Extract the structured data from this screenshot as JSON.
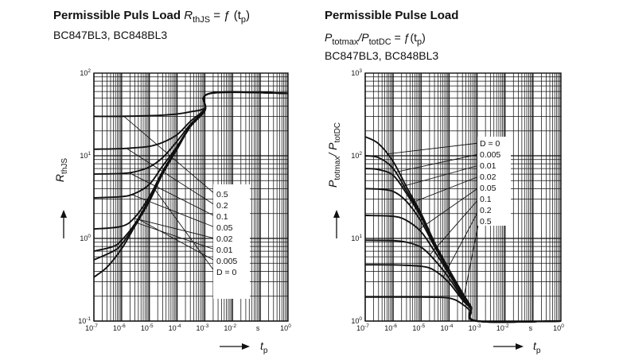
{
  "chart_data": [
    {
      "type": "line",
      "title": "Permissible Puls Load",
      "title_formula": "R",
      "title_formula_sub": "thJS",
      "title_formula_rest": " = ƒ (t",
      "title_formula_rest_sub": "p",
      "title_formula_close": ")",
      "subtitle": "BC847BL3, BC848BL3",
      "ylabel": "R",
      "ylabel_sub": "thJS",
      "xlabel": "t",
      "xlabel_sub": "p",
      "x_unit_label": "s",
      "x_scale": "log",
      "y_scale": "log",
      "xlim": [
        1e-07,
        1
      ],
      "ylim": [
        0.1,
        100
      ],
      "x_ticks": [
        {
          "base": "10",
          "exp": "-7"
        },
        {
          "base": "10",
          "exp": "-6"
        },
        {
          "base": "10",
          "exp": "-5"
        },
        {
          "base": "10",
          "exp": "-4"
        },
        {
          "base": "10",
          "exp": "-3"
        },
        {
          "base": "10",
          "exp": "-2"
        },
        {
          "base": "s",
          "exp": ""
        },
        {
          "base": "10",
          "exp": "0"
        }
      ],
      "y_ticks": [
        {
          "base": "10",
          "exp": "-1"
        },
        {
          "base": "10",
          "exp": "0"
        },
        {
          "base": "10",
          "exp": "1"
        },
        {
          "base": "10",
          "exp": "2"
        }
      ],
      "grid": true,
      "legend_title": "",
      "series": [
        {
          "name": "0.5",
          "x": [
            1e-07,
            1e-06,
            1e-05,
            3e-05,
            0.0001,
            0.0003,
            0.001,
            0.0016,
            1
          ],
          "y": [
            30,
            30,
            30.5,
            31,
            32,
            34,
            38,
            57,
            57
          ]
        },
        {
          "name": "0.2",
          "x": [
            1e-07,
            1e-06,
            3e-06,
            1e-05,
            3e-05,
            0.0001,
            0.0003,
            0.001,
            0.0016,
            1
          ],
          "y": [
            12,
            12.2,
            12.5,
            13,
            14.5,
            18,
            26,
            37,
            57,
            57
          ]
        },
        {
          "name": "0.1",
          "x": [
            1e-07,
            1e-06,
            3e-06,
            1e-05,
            3e-05,
            0.0001,
            0.0003,
            0.001,
            0.0016,
            1
          ],
          "y": [
            6,
            6.1,
            6.4,
            7.3,
            9.5,
            15,
            24,
            36,
            57,
            57
          ]
        },
        {
          "name": "0.05",
          "x": [
            1e-07,
            1e-06,
            3e-06,
            1e-05,
            3e-05,
            0.0001,
            0.0003,
            0.001,
            0.0016,
            1
          ],
          "y": [
            3.1,
            3.2,
            3.5,
            4.5,
            7.5,
            13,
            23,
            35,
            57,
            57
          ]
        },
        {
          "name": "0.02",
          "x": [
            1e-07,
            1e-06,
            3e-06,
            1e-05,
            3e-05,
            0.0001,
            0.0003,
            0.001,
            0.0016,
            1
          ],
          "y": [
            1.3,
            1.4,
            1.8,
            3.2,
            6.5,
            12.5,
            22.5,
            35,
            57,
            57
          ]
        },
        {
          "name": "0.01",
          "x": [
            1e-07,
            5e-07,
            1e-06,
            3e-06,
            1e-05,
            3e-05,
            0.0001,
            0.0003,
            0.001,
            0.0016,
            1
          ],
          "y": [
            0.7,
            0.8,
            0.95,
            1.5,
            3,
            6.2,
            12.3,
            22.5,
            35,
            57,
            57
          ]
        },
        {
          "name": "0.005",
          "x": [
            1e-07,
            5e-07,
            1e-06,
            3e-06,
            1e-05,
            3e-05,
            0.0001,
            0.0003,
            0.001,
            0.0016,
            1
          ],
          "y": [
            0.55,
            0.7,
            0.85,
            1.45,
            2.9,
            6.1,
            12.2,
            22.5,
            35,
            57,
            57
          ]
        },
        {
          "name": "D = 0",
          "x": [
            1e-07,
            3e-07,
            1e-06,
            3e-06,
            1e-05,
            3e-05,
            0.0001,
            0.0003,
            0.001,
            0.0016,
            1
          ],
          "y": [
            0.34,
            0.45,
            0.75,
            1.4,
            2.8,
            6,
            12,
            22.5,
            35,
            57,
            57
          ]
        }
      ]
    },
    {
      "type": "line",
      "title": "Permissible Pulse Load",
      "title_formula": "P",
      "title_formula_sub": "totmax",
      "title_formula_mid": "/P",
      "title_formula_mid_sub": "totDC",
      "title_formula_rest": " = ƒ(t",
      "title_formula_rest_sub": "p",
      "title_formula_close": ")",
      "subtitle": "BC847BL3, BC848BL3",
      "ylabel": "P",
      "ylabel_sub": "totmax",
      "ylabel_mid": "/ P",
      "ylabel_mid_sub": "totDC",
      "xlabel": "t",
      "xlabel_sub": "p",
      "x_unit_label": "s",
      "x_scale": "log",
      "y_scale": "log",
      "xlim": [
        1e-07,
        1
      ],
      "ylim": [
        1,
        1000
      ],
      "x_ticks": [
        {
          "base": "10",
          "exp": "-7"
        },
        {
          "base": "10",
          "exp": "-6"
        },
        {
          "base": "10",
          "exp": "-5"
        },
        {
          "base": "10",
          "exp": "-4"
        },
        {
          "base": "10",
          "exp": "-3"
        },
        {
          "base": "10",
          "exp": "-2"
        },
        {
          "base": "s",
          "exp": ""
        },
        {
          "base": "10",
          "exp": "0"
        }
      ],
      "y_ticks": [
        {
          "base": "10",
          "exp": "0"
        },
        {
          "base": "10",
          "exp": "1"
        },
        {
          "base": "10",
          "exp": "2"
        },
        {
          "base": "10",
          "exp": "3"
        }
      ],
      "grid": true,
      "series": [
        {
          "name": "D = 0",
          "x": [
            1e-07,
            3e-07,
            1e-06,
            3e-06,
            1e-05,
            3e-05,
            0.0001,
            0.0003,
            0.0006,
            0.001,
            1
          ],
          "y": [
            170,
            140,
            85,
            42,
            20,
            9,
            4.2,
            2.2,
            1.5,
            1,
            1
          ]
        },
        {
          "name": "0.005",
          "x": [
            1e-07,
            3e-07,
            1e-06,
            3e-06,
            1e-05,
            3e-05,
            0.0001,
            0.0003,
            0.0006,
            0.001,
            1
          ],
          "y": [
            100,
            95,
            70,
            38,
            19,
            8.7,
            4.1,
            2.15,
            1.5,
            1,
            1
          ]
        },
        {
          "name": "0.01",
          "x": [
            1e-07,
            3e-07,
            1e-06,
            3e-06,
            1e-05,
            3e-05,
            0.0001,
            0.0003,
            0.0006,
            0.001,
            1
          ],
          "y": [
            70,
            68,
            58,
            35,
            18,
            8.5,
            4.05,
            2.1,
            1.5,
            1,
            1
          ]
        },
        {
          "name": "0.02",
          "x": [
            1e-07,
            3e-07,
            1e-06,
            3e-06,
            1e-05,
            3e-05,
            0.0001,
            0.0003,
            0.0006,
            0.001,
            1
          ],
          "y": [
            40,
            39.5,
            37,
            28,
            16,
            8,
            3.9,
            2.05,
            1.5,
            1,
            1
          ]
        },
        {
          "name": "0.05",
          "x": [
            1e-07,
            1e-06,
            3e-06,
            1e-05,
            3e-05,
            0.0001,
            0.0003,
            0.0006,
            0.001,
            1
          ],
          "y": [
            19,
            18.5,
            16.5,
            12,
            7,
            3.7,
            2,
            1.5,
            1,
            1
          ]
        },
        {
          "name": "0.1",
          "x": [
            1e-07,
            1e-06,
            3e-06,
            1e-05,
            3e-05,
            0.0001,
            0.0003,
            0.0006,
            0.001,
            1
          ],
          "y": [
            9.5,
            9.4,
            9,
            7.8,
            5.5,
            3.3,
            1.9,
            1.45,
            1,
            1
          ]
        },
        {
          "name": "0.2",
          "x": [
            1e-07,
            1e-06,
            1e-05,
            3e-05,
            0.0001,
            0.0003,
            0.0006,
            0.001,
            1
          ],
          "y": [
            4.8,
            4.78,
            4.6,
            4.1,
            2.9,
            1.8,
            1.4,
            1,
            1
          ]
        },
        {
          "name": "0.5",
          "x": [
            1e-07,
            1e-06,
            1e-05,
            0.0001,
            0.0003,
            0.0006,
            0.001,
            1
          ],
          "y": [
            1.95,
            1.95,
            1.95,
            1.9,
            1.6,
            1.3,
            1,
            1
          ]
        }
      ]
    }
  ]
}
